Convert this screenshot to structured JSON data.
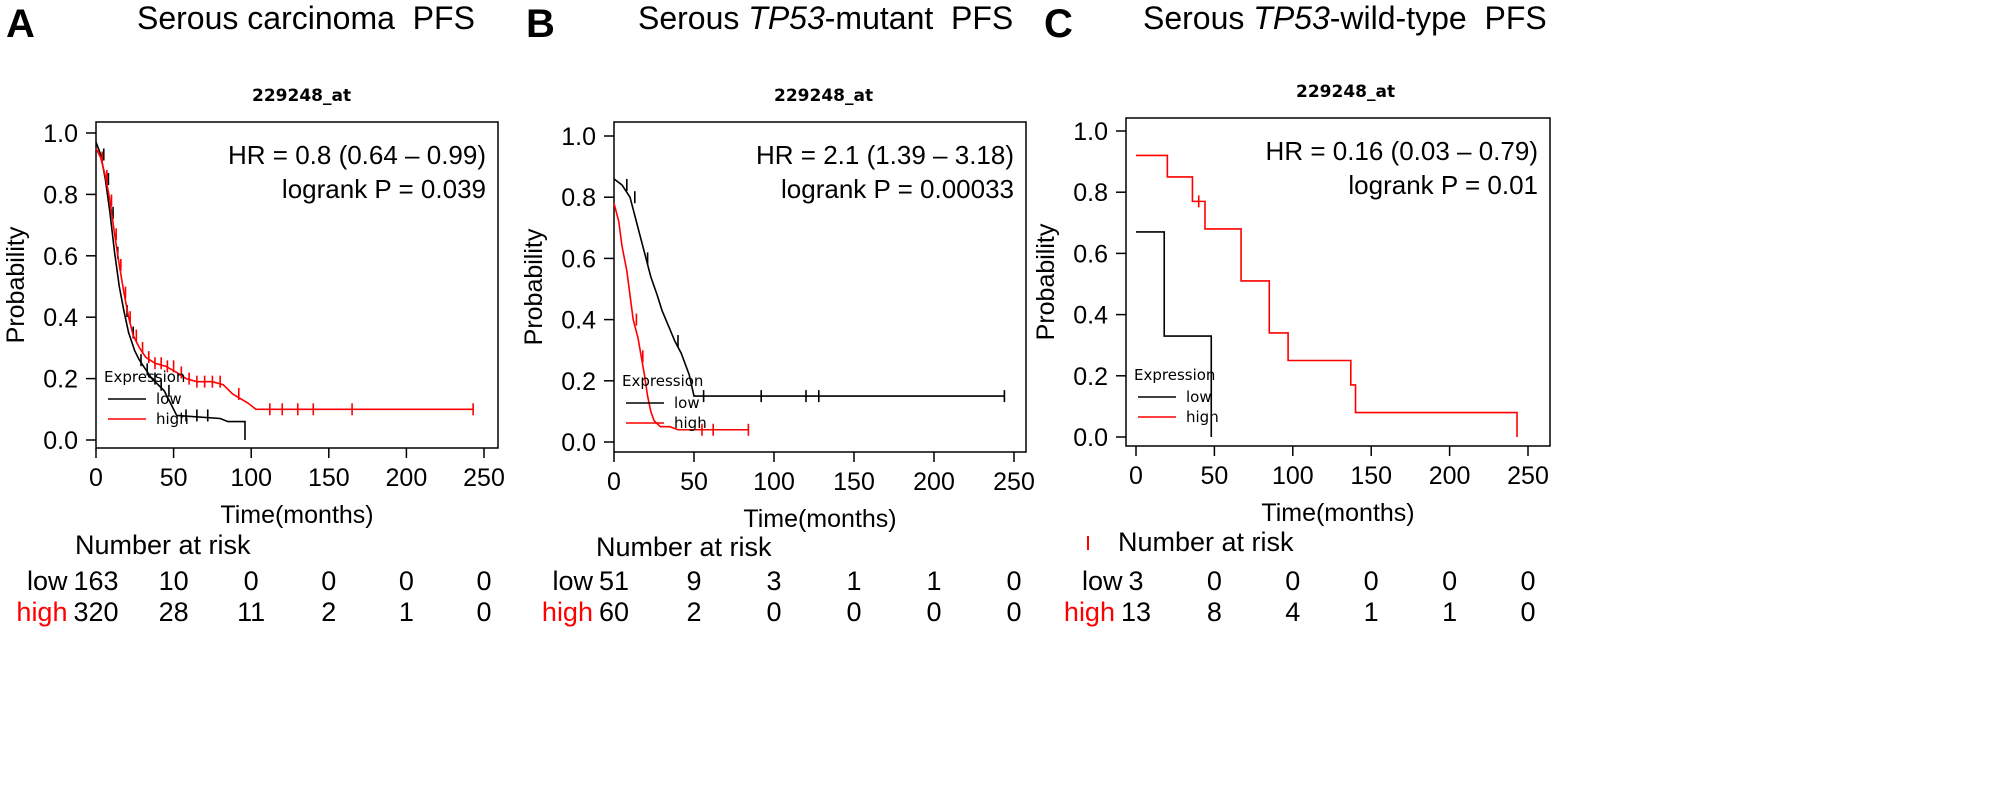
{
  "panels": [
    {
      "letter": "A",
      "title_pre": "Serous carcinoma  PFS",
      "title_italic": "",
      "title_post": "",
      "chart_data": {
        "type": "line",
        "subtitle": "229248_at",
        "xlabel": "Time(months)",
        "ylabel": "Probability",
        "xlim": [
          0,
          250
        ],
        "ylim": [
          0,
          1
        ],
        "xticks": [
          "0",
          "50",
          "100",
          "150",
          "200",
          "250"
        ],
        "yticks": [
          "0.0",
          "0.2",
          "0.4",
          "0.6",
          "0.8",
          "1.0"
        ],
        "annotation": [
          "HR = 0.8 (0.64 – 0.99)",
          "logrank P = 0.039"
        ],
        "legend": {
          "title": "Expression",
          "position": "bottom-left"
        },
        "series": [
          {
            "name": "low",
            "color": "#000000",
            "points": [
              [
                0,
                0.97
              ],
              [
                3,
                0.93
              ],
              [
                6,
                0.85
              ],
              [
                9,
                0.74
              ],
              [
                12,
                0.61
              ],
              [
                15,
                0.5
              ],
              [
                18,
                0.42
              ],
              [
                21,
                0.35
              ],
              [
                25,
                0.29
              ],
              [
                28,
                0.26
              ],
              [
                32,
                0.23
              ],
              [
                36,
                0.2
              ],
              [
                40,
                0.18
              ],
              [
                44,
                0.16
              ],
              [
                48,
                0.12
              ],
              [
                52,
                0.08
              ],
              [
                80,
                0.07
              ],
              [
                85,
                0.06
              ],
              [
                96,
                0.06
              ],
              [
                96,
                0.0
              ]
            ],
            "censors": [
              5,
              8,
              11,
              14,
              20,
              24,
              29,
              33,
              38,
              42,
              47,
              58,
              65,
              72
            ]
          },
          {
            "name": "high",
            "color": "#ff0000",
            "points": [
              [
                0,
                0.95
              ],
              [
                3,
                0.92
              ],
              [
                6,
                0.86
              ],
              [
                9,
                0.78
              ],
              [
                12,
                0.67
              ],
              [
                15,
                0.57
              ],
              [
                18,
                0.48
              ],
              [
                21,
                0.4
              ],
              [
                24,
                0.34
              ],
              [
                28,
                0.3
              ],
              [
                32,
                0.27
              ],
              [
                38,
                0.25
              ],
              [
                45,
                0.24
              ],
              [
                52,
                0.22
              ],
              [
                58,
                0.2
              ],
              [
                65,
                0.19
              ],
              [
                75,
                0.19
              ],
              [
                82,
                0.18
              ],
              [
                88,
                0.15
              ],
              [
                98,
                0.12
              ],
              [
                103,
                0.1
              ],
              [
                243,
                0.1
              ]
            ],
            "censors": [
              4,
              7,
              10,
              13,
              16,
              19,
              22,
              26,
              30,
              34,
              38,
              42,
              46,
              50,
              55,
              60,
              65,
              70,
              75,
              80,
              92,
              112,
              120,
              130,
              140,
              165,
              243
            ]
          }
        ]
      },
      "risk": {
        "title": "Number at risk",
        "low": {
          "label": "low",
          "values": [
            "163",
            "10",
            "0",
            "0",
            "0",
            "0"
          ]
        },
        "high": {
          "label": "high",
          "values": [
            "320",
            "28",
            "11",
            "2",
            "1",
            "0"
          ]
        }
      }
    },
    {
      "letter": "B",
      "title_pre": "Serous ",
      "title_italic": "TP53",
      "title_post": "-mutant  PFS",
      "chart_data": {
        "type": "line",
        "subtitle": "229248_at",
        "xlabel": "Time(months)",
        "ylabel": "Probability",
        "xlim": [
          0,
          250
        ],
        "ylim": [
          0,
          1
        ],
        "xticks": [
          "0",
          "50",
          "100",
          "150",
          "200",
          "250"
        ],
        "yticks": [
          "0.0",
          "0.2",
          "0.4",
          "0.6",
          "0.8",
          "1.0"
        ],
        "annotation": [
          "HR = 2.1 (1.39 – 3.18)",
          "logrank P = 0.00033"
        ],
        "legend": {
          "title": "Expression",
          "position": "bottom-left"
        },
        "series": [
          {
            "name": "low",
            "color": "#000000",
            "points": [
              [
                0,
                0.86
              ],
              [
                5,
                0.84
              ],
              [
                10,
                0.8
              ],
              [
                14,
                0.72
              ],
              [
                17,
                0.66
              ],
              [
                20,
                0.6
              ],
              [
                23,
                0.54
              ],
              [
                27,
                0.48
              ],
              [
                30,
                0.43
              ],
              [
                34,
                0.38
              ],
              [
                38,
                0.33
              ],
              [
                42,
                0.29
              ],
              [
                47,
                0.22
              ],
              [
                50,
                0.15
              ],
              [
                54,
                0.15
              ],
              [
                244,
                0.15
              ]
            ],
            "censors": [
              8,
              13,
              21,
              40,
              56,
              92,
              120,
              128,
              244
            ]
          },
          {
            "name": "high",
            "color": "#ff0000",
            "points": [
              [
                0,
                0.78
              ],
              [
                3,
                0.72
              ],
              [
                5,
                0.64
              ],
              [
                8,
                0.56
              ],
              [
                10,
                0.48
              ],
              [
                12,
                0.4
              ],
              [
                15,
                0.34
              ],
              [
                17,
                0.28
              ],
              [
                19,
                0.22
              ],
              [
                21,
                0.15
              ],
              [
                23,
                0.1
              ],
              [
                25,
                0.07
              ],
              [
                29,
                0.05
              ],
              [
                35,
                0.05
              ],
              [
                40,
                0.04
              ],
              [
                84,
                0.04
              ]
            ],
            "censors": [
              14,
              18,
              55,
              62,
              84
            ]
          }
        ]
      },
      "risk": {
        "title": "Number at risk",
        "low": {
          "label": "low",
          "values": [
            "51",
            "9",
            "3",
            "1",
            "1",
            "0"
          ]
        },
        "high": {
          "label": "high",
          "values": [
            "60",
            "2",
            "0",
            "0",
            "0",
            "0"
          ]
        }
      }
    },
    {
      "letter": "C",
      "title_pre": "Serous ",
      "title_italic": "TP53",
      "title_post": "-wild-type  PFS",
      "chart_data": {
        "type": "line",
        "subtitle": "229248_at",
        "xlabel": "Time(months)",
        "ylabel": "Probability",
        "xlim": [
          0,
          250
        ],
        "ylim": [
          0,
          1
        ],
        "xticks": [
          "0",
          "50",
          "100",
          "150",
          "200",
          "250"
        ],
        "yticks": [
          "0.0",
          "0.2",
          "0.4",
          "0.6",
          "0.8",
          "1.0"
        ],
        "annotation": [
          "HR = 0.16 (0.03 – 0.79)",
          "logrank P = 0.01"
        ],
        "legend": {
          "title": "Expression",
          "position": "bottom-left"
        },
        "series": [
          {
            "name": "low",
            "color": "#000000",
            "points": [
              [
                0,
                0.67
              ],
              [
                18,
                0.67
              ],
              [
                18,
                0.33
              ],
              [
                48,
                0.33
              ],
              [
                48,
                0.0
              ]
            ],
            "censors": []
          },
          {
            "name": "high",
            "color": "#ff0000",
            "points": [
              [
                0,
                0.92
              ],
              [
                20,
                0.92
              ],
              [
                20,
                0.85
              ],
              [
                36,
                0.85
              ],
              [
                36,
                0.77
              ],
              [
                44,
                0.77
              ],
              [
                44,
                0.68
              ],
              [
                67,
                0.68
              ],
              [
                67,
                0.51
              ],
              [
                85,
                0.51
              ],
              [
                85,
                0.34
              ],
              [
                97,
                0.34
              ],
              [
                97,
                0.25
              ],
              [
                137,
                0.25
              ],
              [
                137,
                0.17
              ],
              [
                140,
                0.17
              ],
              [
                140,
                0.08
              ],
              [
                243,
                0.08
              ],
              [
                243,
                0.0
              ]
            ],
            "censors": [
              40
            ]
          }
        ]
      },
      "risk": {
        "title": "Number at risk",
        "low": {
          "label": "low",
          "values": [
            "3",
            "0",
            "0",
            "0",
            "0",
            "0"
          ]
        },
        "high": {
          "label": "high",
          "values": [
            "13",
            "8",
            "4",
            "1",
            "1",
            "0"
          ]
        }
      }
    }
  ]
}
